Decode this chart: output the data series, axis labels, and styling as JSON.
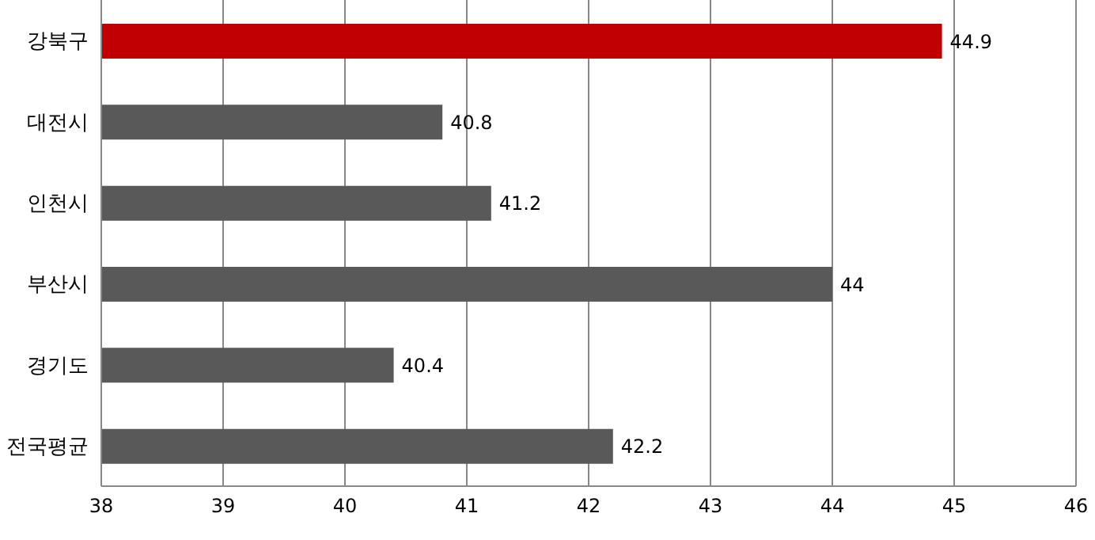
{
  "chart_data": {
    "type": "bar",
    "orientation": "horizontal",
    "categories": [
      "강북구",
      "대전시",
      "인천시",
      "부산시",
      "경기도",
      "전국평균"
    ],
    "values": [
      44.9,
      40.8,
      41.2,
      44,
      40.4,
      42.2
    ],
    "colors": [
      "#c00000",
      "#595959",
      "#595959",
      "#595959",
      "#595959",
      "#595959"
    ],
    "xlim": [
      38,
      46
    ],
    "xticks": [
      38,
      39,
      40,
      41,
      42,
      43,
      44,
      45,
      46
    ],
    "grid": "x",
    "data_labels": true
  }
}
